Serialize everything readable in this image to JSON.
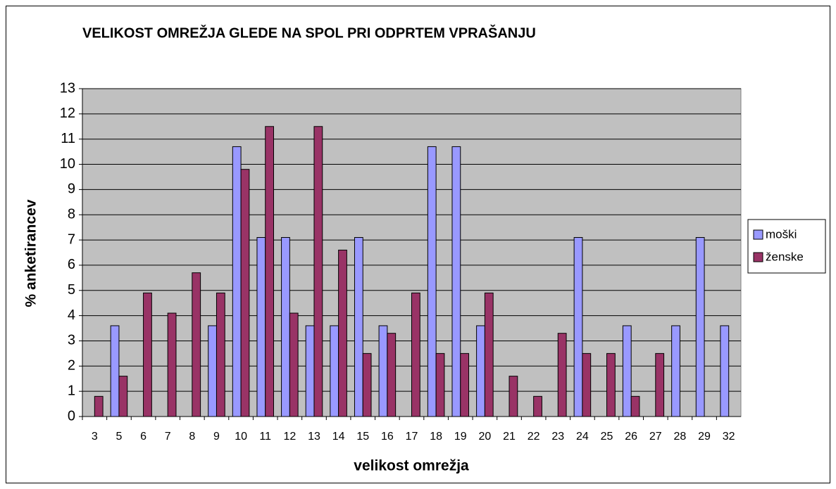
{
  "chart_data": {
    "type": "bar",
    "title": "VELIKOST OMREŽJA GLEDE NA SPOL PRI ODPRTEM VPRAŠANJU",
    "x_label": "velikost omrežja",
    "y_label": "% anketirancev",
    "categories": [
      "3",
      "5",
      "6",
      "7",
      "8",
      "9",
      "10",
      "11",
      "12",
      "13",
      "14",
      "15",
      "16",
      "17",
      "18",
      "19",
      "20",
      "21",
      "22",
      "23",
      "24",
      "25",
      "26",
      "27",
      "28",
      "29",
      "32"
    ],
    "series": [
      {
        "name": "moški",
        "color": "#9999ff",
        "values": [
          0,
          3.6,
          0,
          0,
          0,
          3.6,
          10.7,
          7.1,
          7.1,
          3.6,
          3.6,
          7.1,
          3.6,
          0,
          10.7,
          10.7,
          3.6,
          0,
          0,
          0,
          7.1,
          0,
          3.6,
          0,
          3.6,
          7.1,
          3.6
        ]
      },
      {
        "name": "ženske",
        "color": "#993366",
        "values": [
          0.8,
          1.6,
          4.9,
          4.1,
          5.7,
          4.9,
          9.8,
          11.5,
          4.1,
          11.5,
          6.6,
          2.5,
          3.3,
          4.9,
          2.5,
          2.5,
          4.9,
          1.6,
          0.8,
          3.3,
          2.5,
          2.5,
          0.8,
          2.5,
          0,
          0,
          0
        ]
      }
    ],
    "ylim": [
      0,
      13
    ],
    "yticks": [
      0,
      1,
      2,
      3,
      4,
      5,
      6,
      7,
      8,
      9,
      10,
      11,
      12,
      13
    ],
    "grid": true,
    "legend": "right",
    "plot_background": "#c0c0c0"
  }
}
